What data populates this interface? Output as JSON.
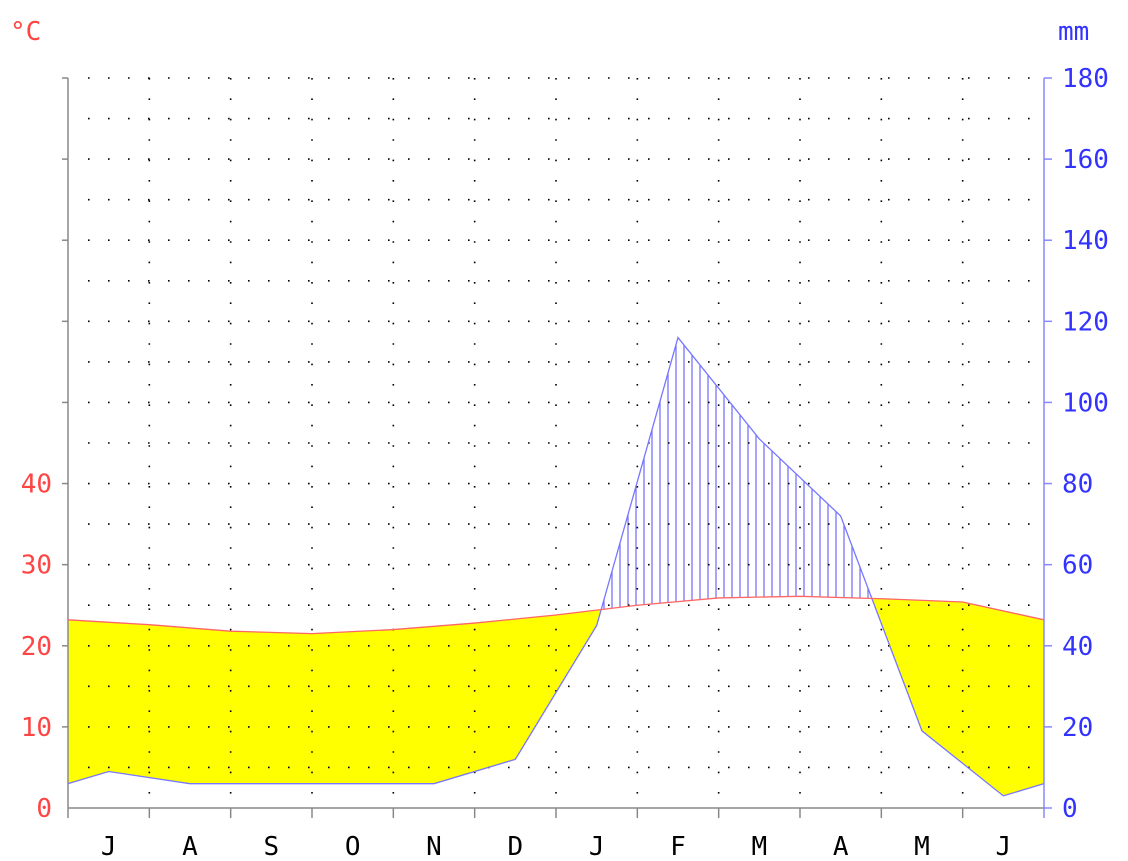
{
  "chart_data": {
    "type": "area",
    "title": "",
    "x_categories": [
      "J",
      "A",
      "S",
      "O",
      "N",
      "D",
      "J",
      "F",
      "M",
      "A",
      "M",
      "J"
    ],
    "left_axis": {
      "label": "°C",
      "ticks": [
        "0",
        "10",
        "20",
        "30",
        "40"
      ],
      "range": [
        0,
        90
      ],
      "color": "#ff4444"
    },
    "right_axis": {
      "label": "mm",
      "ticks": [
        "0",
        "20",
        "40",
        "60",
        "80",
        "100",
        "120",
        "140",
        "160",
        "180"
      ],
      "range": [
        0,
        180
      ],
      "color": "#3333ff"
    },
    "grid": true,
    "series": [
      {
        "name": "",
        "axis": "left",
        "x": [
          0,
          1,
          2,
          3,
          4,
          5,
          6,
          7,
          8,
          9,
          10,
          11,
          12
        ],
        "values": [
          23.2,
          22.6,
          21.8,
          21.5,
          22.0,
          22.8,
          23.8,
          25.0,
          25.9,
          26.1,
          25.8,
          25.4,
          23.2
        ]
      },
      {
        "name": "",
        "axis": "right",
        "x": [
          0,
          0.5,
          1.5,
          2.5,
          3.5,
          4.5,
          5.5,
          6.5,
          7.5,
          8.5,
          9.5,
          10.5,
          11.5,
          12
        ],
        "values": [
          6,
          9,
          6,
          6,
          6,
          6,
          12,
          45,
          116,
          91,
          72,
          19,
          3,
          6
        ]
      }
    ],
    "fills": {
      "dry": "#ffff00",
      "humid_hatch": "#3333ff"
    }
  }
}
